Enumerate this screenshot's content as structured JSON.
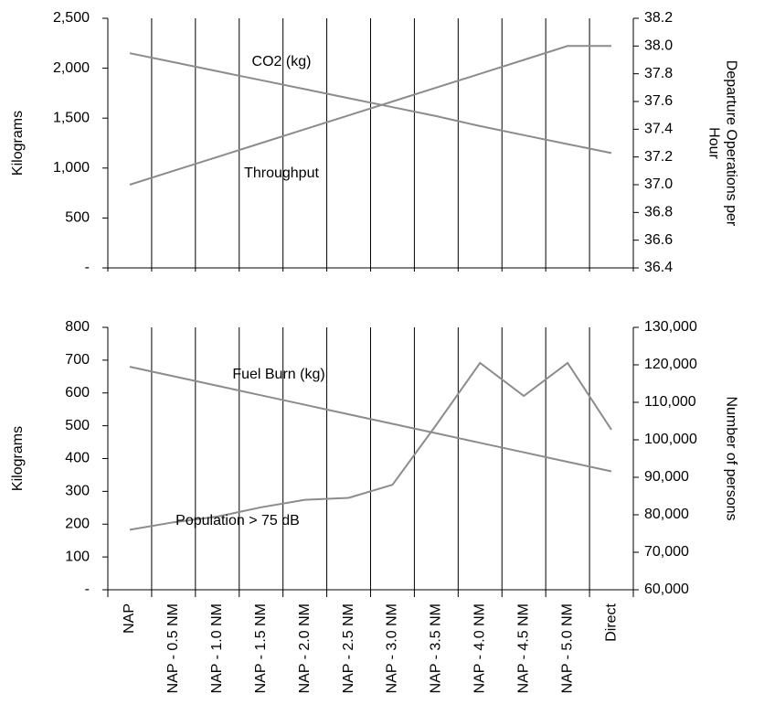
{
  "chart_data": [
    {
      "type": "line",
      "ylabel": "Kilograms",
      "y2label": "Departure Operations per Hour",
      "ylim": [
        0,
        2500
      ],
      "yticks": [
        {
          "value": 0,
          "label": "-"
        },
        500,
        {
          "value": 1000,
          "label": "1,000"
        },
        {
          "value": 1500,
          "label": "1,500"
        },
        {
          "value": 2000,
          "label": "2,000"
        },
        {
          "value": 2500,
          "label": "2,500"
        }
      ],
      "y2lim": [
        36.4,
        38.2
      ],
      "y2ticks": [
        36.4,
        36.6,
        36.8,
        {
          "value": 37,
          "label": "37.0"
        },
        37.2,
        37.4,
        37.6,
        37.8,
        {
          "value": 38,
          "label": "38.0"
        },
        38.2
      ],
      "grid": true,
      "series": [
        {
          "name": "CO2 (kg)",
          "color": "#8c8c8c",
          "values": [
            2150,
            2060,
            1970,
            1880,
            1790,
            1700,
            1610,
            1520,
            1420,
            1330,
            1240,
            1150
          ]
        },
        {
          "name": "Throughput",
          "color": "#8c8c8c",
          "axis": "y2",
          "values": [
            37.0,
            37.1,
            37.2,
            37.3,
            37.4,
            37.5,
            37.6,
            37.7,
            37.8,
            37.9,
            38.0,
            38.0
          ]
        }
      ]
    },
    {
      "type": "line",
      "ylabel": "Kilograms",
      "y2label": "Number of persons",
      "categories": [
        "NAP",
        "NAP - 0.5 NM",
        "NAP - 1.0 NM",
        "NAP - 1.5 NM",
        "NAP - 2.0 NM",
        "NAP - 2.5 NM",
        "NAP - 3.0 NM",
        "NAP - 3.5 NM",
        "NAP - 4.0 NM",
        "NAP - 4.5 NM",
        "NAP - 5.0 NM",
        "Direct"
      ],
      "ylim": [
        0,
        800
      ],
      "yticks": [
        {
          "value": 0,
          "label": "-"
        },
        100,
        200,
        300,
        400,
        500,
        600,
        700,
        800
      ],
      "y2lim": [
        60000,
        130000
      ],
      "y2ticks": [
        {
          "value": 60000,
          "label": "60,000"
        },
        {
          "value": 70000,
          "label": "70,000"
        },
        {
          "value": 80000,
          "label": "80,000"
        },
        {
          "value": 90000,
          "label": "90,000"
        },
        {
          "value": 100000,
          "label": "100,000"
        },
        {
          "value": 110000,
          "label": "110,000"
        },
        {
          "value": 120000,
          "label": "120,000"
        },
        {
          "value": 130000,
          "label": "130,000"
        }
      ],
      "grid": true,
      "series": [
        {
          "name": "Fuel Burn (kg)",
          "color": "#8c8c8c",
          "values": [
            680,
            651,
            622,
            593,
            564,
            535,
            506,
            477,
            448,
            419,
            390,
            361
          ]
        },
        {
          "name": "Population > 75 dB",
          "color": "#8c8c8c",
          "axis": "y2",
          "values": [
            76000,
            78000,
            79500,
            82000,
            84000,
            84500,
            88000,
            104000,
            120500,
            111700,
            120500,
            102700
          ]
        }
      ]
    }
  ]
}
